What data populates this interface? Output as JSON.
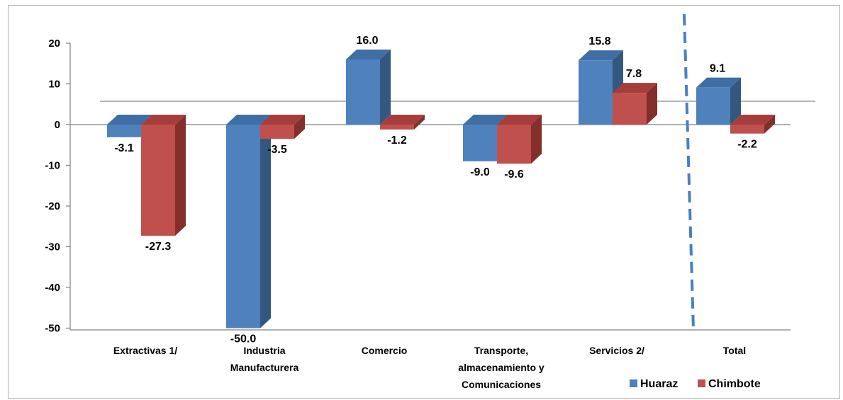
{
  "chart_data": {
    "type": "bar",
    "categories": [
      [
        "Extractivas 1/"
      ],
      [
        "Industria",
        "Manufacturera"
      ],
      [
        "Comercio"
      ],
      [
        "Transporte,",
        "almacenamiento y",
        "Comunicaciones"
      ],
      [
        "Servicios 2/"
      ],
      [
        "Total"
      ]
    ],
    "series": [
      {
        "name": "Huaraz",
        "values": [
          -3.1,
          -50.0,
          16.0,
          -9.0,
          15.8,
          9.1
        ],
        "labels": [
          "-3.1",
          "-50.0",
          "16.0",
          "-9.0",
          "15.8",
          "9.1"
        ]
      },
      {
        "name": "Chimbote",
        "values": [
          -27.3,
          -3.5,
          -1.2,
          -9.6,
          7.8,
          -2.2
        ],
        "labels": [
          "-27.3",
          "-3.5",
          "-1.2",
          "-9.6",
          "7.8",
          "-2.2"
        ]
      }
    ],
    "yticks": [
      "20",
      "10",
      "0",
      "-10",
      "-20",
      "-30",
      "-40",
      "-50"
    ],
    "ylim": [
      -50,
      20
    ],
    "legend_position": "bottom-right",
    "colors": {
      "Huaraz": {
        "front": "#4f81bd",
        "side": "#34577f",
        "top": "#3f6ea5"
      },
      "Chimbote": {
        "front": "#c0504d",
        "side": "#842f2c",
        "top": "#a53e3b"
      }
    },
    "separator_color": "#4a7fc1"
  }
}
